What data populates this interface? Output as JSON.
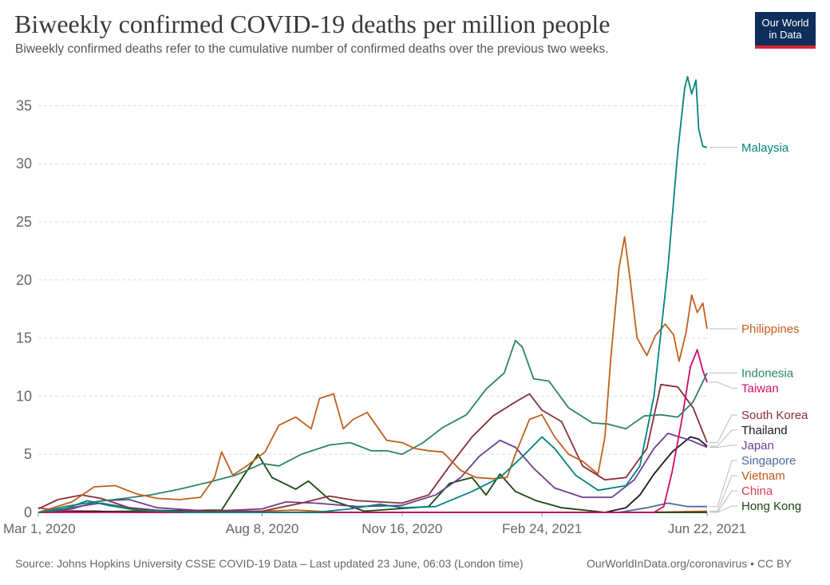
{
  "header": {
    "title": "Biweekly confirmed COVID-19 deaths per million people",
    "subtitle": "Biweekly confirmed deaths refer to the cumulative number of confirmed deaths over the previous two weeks.",
    "logo_line1": "Our World",
    "logo_line2": "in Data"
  },
  "footer": {
    "source": "Source: Johns Hopkins University CSSE COVID-19 Data – Last updated 23 June, 06:03 (London time)",
    "credit": "OurWorldInData.org/coronavirus • CC BY"
  },
  "colors": {
    "Malaysia": "#00847e",
    "Philippines": "#c15f1e",
    "Indonesia": "#2c8465",
    "Taiwan": "#cf0a66",
    "Japan": "#6d3e91",
    "Thailand": "#1a1a1a",
    "South Korea": "#883039",
    "Singapore": "#4c6a9c",
    "Vietnam": "#c05917",
    "China": "#d73c50",
    "Hong Kong": "#18470f",
    "grid": "#dddddd",
    "axis_text": "#666666"
  },
  "chart_data": {
    "type": "line",
    "title": "Biweekly confirmed COVID-19 deaths per million people",
    "xlabel": "",
    "ylabel": "",
    "x_domain": [
      "2020-03-01",
      "2021-06-22"
    ],
    "x_ticks": [
      {
        "date": "2020-03-01",
        "label": "Mar 1, 2020"
      },
      {
        "date": "2020-08-08",
        "label": "Aug 8, 2020"
      },
      {
        "date": "2020-11-16",
        "label": "Nov 16, 2020"
      },
      {
        "date": "2021-02-24",
        "label": "Feb 24, 2021"
      },
      {
        "date": "2021-06-22",
        "label": "Jun 22, 2021"
      }
    ],
    "ylim": [
      0,
      37.5
    ],
    "y_ticks": [
      0,
      5,
      10,
      15,
      20,
      25,
      30,
      35
    ],
    "grid": true,
    "legend": "right (labels at line ends)",
    "series": [
      {
        "name": "Malaysia",
        "color": "#00847e",
        "points": [
          [
            "2020-03-01",
            0.0
          ],
          [
            "2020-03-20",
            0.3
          ],
          [
            "2020-04-05",
            1.0
          ],
          [
            "2020-04-20",
            0.6
          ],
          [
            "2020-05-10",
            0.2
          ],
          [
            "2020-06-15",
            0.0
          ],
          [
            "2020-08-08",
            0.0
          ],
          [
            "2020-09-15",
            0.0
          ],
          [
            "2020-10-10",
            0.3
          ],
          [
            "2020-10-31",
            0.7
          ],
          [
            "2020-11-16",
            0.4
          ],
          [
            "2020-12-10",
            0.5
          ],
          [
            "2021-01-05",
            1.8
          ],
          [
            "2021-01-25",
            3.0
          ],
          [
            "2021-02-10",
            4.8
          ],
          [
            "2021-02-24",
            6.5
          ],
          [
            "2021-03-05",
            5.5
          ],
          [
            "2021-03-20",
            3.2
          ],
          [
            "2021-04-05",
            1.9
          ],
          [
            "2021-04-25",
            2.3
          ],
          [
            "2021-05-05",
            4.0
          ],
          [
            "2021-05-15",
            10.0
          ],
          [
            "2021-05-25",
            21.0
          ],
          [
            "2021-06-01",
            31.0
          ],
          [
            "2021-06-06",
            36.5
          ],
          [
            "2021-06-08",
            37.5
          ],
          [
            "2021-06-11",
            36.0
          ],
          [
            "2021-06-14",
            37.2
          ],
          [
            "2021-06-16",
            33.0
          ],
          [
            "2021-06-19",
            31.5
          ],
          [
            "2021-06-22",
            31.4
          ]
        ]
      },
      {
        "name": "Philippines",
        "color": "#c15f1e",
        "points": [
          [
            "2020-03-01",
            0.0
          ],
          [
            "2020-03-25",
            0.9
          ],
          [
            "2020-04-10",
            2.2
          ],
          [
            "2020-04-25",
            2.3
          ],
          [
            "2020-05-10",
            1.6
          ],
          [
            "2020-05-25",
            1.2
          ],
          [
            "2020-06-10",
            1.1
          ],
          [
            "2020-06-25",
            1.3
          ],
          [
            "2020-07-05",
            3.0
          ],
          [
            "2020-07-10",
            5.2
          ],
          [
            "2020-07-18",
            3.2
          ],
          [
            "2020-07-28",
            4.0
          ],
          [
            "2020-08-10",
            5.2
          ],
          [
            "2020-08-20",
            7.5
          ],
          [
            "2020-09-01",
            8.2
          ],
          [
            "2020-09-12",
            7.2
          ],
          [
            "2020-09-18",
            9.8
          ],
          [
            "2020-09-28",
            10.2
          ],
          [
            "2020-10-05",
            7.2
          ],
          [
            "2020-10-12",
            8.0
          ],
          [
            "2020-10-22",
            8.6
          ],
          [
            "2020-11-05",
            6.2
          ],
          [
            "2020-11-16",
            6.0
          ],
          [
            "2020-11-25",
            5.5
          ],
          [
            "2020-12-05",
            5.3
          ],
          [
            "2020-12-15",
            5.2
          ],
          [
            "2020-12-28",
            3.6
          ],
          [
            "2021-01-08",
            3.0
          ],
          [
            "2021-01-20",
            2.9
          ],
          [
            "2021-01-30",
            3.0
          ],
          [
            "2021-02-05",
            5.0
          ],
          [
            "2021-02-15",
            8.0
          ],
          [
            "2021-02-24",
            8.4
          ],
          [
            "2021-03-05",
            6.5
          ],
          [
            "2021-03-15",
            5.0
          ],
          [
            "2021-03-25",
            4.4
          ],
          [
            "2021-04-05",
            3.3
          ],
          [
            "2021-04-10",
            6.5
          ],
          [
            "2021-04-14",
            13.0
          ],
          [
            "2021-04-20",
            21.0
          ],
          [
            "2021-04-24",
            23.7
          ],
          [
            "2021-04-28",
            20.0
          ],
          [
            "2021-05-03",
            15.0
          ],
          [
            "2021-05-10",
            13.5
          ],
          [
            "2021-05-16",
            15.2
          ],
          [
            "2021-05-23",
            16.2
          ],
          [
            "2021-05-29",
            15.3
          ],
          [
            "2021-06-02",
            13.0
          ],
          [
            "2021-06-07",
            15.5
          ],
          [
            "2021-06-11",
            18.7
          ],
          [
            "2021-06-15",
            17.2
          ],
          [
            "2021-06-19",
            18.0
          ],
          [
            "2021-06-22",
            15.8
          ]
        ]
      },
      {
        "name": "Indonesia",
        "color": "#2c8465",
        "points": [
          [
            "2020-03-01",
            0.0
          ],
          [
            "2020-03-20",
            0.5
          ],
          [
            "2020-04-10",
            0.9
          ],
          [
            "2020-05-01",
            1.2
          ],
          [
            "2020-05-20",
            1.5
          ],
          [
            "2020-06-10",
            2.0
          ],
          [
            "2020-07-01",
            2.6
          ],
          [
            "2020-07-20",
            3.2
          ],
          [
            "2020-08-08",
            4.2
          ],
          [
            "2020-08-20",
            4.0
          ],
          [
            "2020-09-05",
            5.0
          ],
          [
            "2020-09-25",
            5.8
          ],
          [
            "2020-10-10",
            6.0
          ],
          [
            "2020-10-25",
            5.3
          ],
          [
            "2020-11-05",
            5.3
          ],
          [
            "2020-11-16",
            5.0
          ],
          [
            "2020-12-01",
            6.0
          ],
          [
            "2020-12-15",
            7.3
          ],
          [
            "2021-01-01",
            8.4
          ],
          [
            "2021-01-15",
            10.6
          ],
          [
            "2021-01-28",
            12.0
          ],
          [
            "2021-02-05",
            14.8
          ],
          [
            "2021-02-10",
            14.2
          ],
          [
            "2021-02-18",
            11.5
          ],
          [
            "2021-03-01",
            11.3
          ],
          [
            "2021-03-15",
            9.0
          ],
          [
            "2021-04-01",
            7.7
          ],
          [
            "2021-04-12",
            7.6
          ],
          [
            "2021-04-25",
            7.2
          ],
          [
            "2021-05-08",
            8.3
          ],
          [
            "2021-05-20",
            8.4
          ],
          [
            "2021-06-01",
            8.2
          ],
          [
            "2021-06-12",
            9.5
          ],
          [
            "2021-06-22",
            12.0
          ]
        ]
      },
      {
        "name": "Taiwan",
        "color": "#cf0a66",
        "points": [
          [
            "2020-03-01",
            0.0
          ],
          [
            "2021-05-15",
            0.0
          ],
          [
            "2021-05-22",
            0.5
          ],
          [
            "2021-05-28",
            3.5
          ],
          [
            "2021-06-04",
            8.0
          ],
          [
            "2021-06-10",
            12.5
          ],
          [
            "2021-06-15",
            14.0
          ],
          [
            "2021-06-19",
            12.2
          ],
          [
            "2021-06-22",
            11.2
          ]
        ]
      },
      {
        "name": "Japan",
        "color": "#6d3e91",
        "points": [
          [
            "2020-03-01",
            0.0
          ],
          [
            "2020-03-25",
            0.3
          ],
          [
            "2020-04-15",
            1.0
          ],
          [
            "2020-05-05",
            1.1
          ],
          [
            "2020-05-25",
            0.4
          ],
          [
            "2020-07-01",
            0.1
          ],
          [
            "2020-08-08",
            0.3
          ],
          [
            "2020-08-25",
            0.9
          ],
          [
            "2020-09-15",
            0.8
          ],
          [
            "2020-10-15",
            0.5
          ],
          [
            "2020-11-16",
            0.6
          ],
          [
            "2020-12-10",
            1.5
          ],
          [
            "2020-12-28",
            3.0
          ],
          [
            "2021-01-10",
            4.8
          ],
          [
            "2021-01-25",
            6.2
          ],
          [
            "2021-02-05",
            5.6
          ],
          [
            "2021-02-18",
            3.8
          ],
          [
            "2021-03-05",
            2.1
          ],
          [
            "2021-03-25",
            1.3
          ],
          [
            "2021-04-15",
            1.3
          ],
          [
            "2021-05-01",
            2.8
          ],
          [
            "2021-05-15",
            5.5
          ],
          [
            "2021-05-25",
            6.8
          ],
          [
            "2021-06-10",
            6.2
          ],
          [
            "2021-06-22",
            5.6
          ]
        ]
      },
      {
        "name": "Thailand",
        "color": "#1a1a1a",
        "points": [
          [
            "2020-03-01",
            0.0
          ],
          [
            "2020-04-10",
            0.1
          ],
          [
            "2020-05-10",
            0.0
          ],
          [
            "2021-04-10",
            0.0
          ],
          [
            "2021-04-25",
            0.4
          ],
          [
            "2021-05-05",
            1.5
          ],
          [
            "2021-05-15",
            3.3
          ],
          [
            "2021-05-28",
            5.2
          ],
          [
            "2021-06-10",
            6.5
          ],
          [
            "2021-06-16",
            6.3
          ],
          [
            "2021-06-22",
            5.7
          ]
        ]
      },
      {
        "name": "South Korea",
        "color": "#883039",
        "points": [
          [
            "2020-03-01",
            0.3
          ],
          [
            "2020-03-15",
            1.1
          ],
          [
            "2020-04-01",
            1.5
          ],
          [
            "2020-04-15",
            1.2
          ],
          [
            "2020-05-05",
            0.4
          ],
          [
            "2020-06-01",
            0.1
          ],
          [
            "2020-08-08",
            0.1
          ],
          [
            "2020-09-05",
            0.8
          ],
          [
            "2020-09-25",
            1.4
          ],
          [
            "2020-10-15",
            1.0
          ],
          [
            "2020-11-16",
            0.8
          ],
          [
            "2020-12-05",
            1.5
          ],
          [
            "2020-12-20",
            4.0
          ],
          [
            "2021-01-05",
            6.5
          ],
          [
            "2021-01-20",
            8.3
          ],
          [
            "2021-02-05",
            9.5
          ],
          [
            "2021-02-15",
            10.2
          ],
          [
            "2021-02-24",
            8.8
          ],
          [
            "2021-03-10",
            7.8
          ],
          [
            "2021-03-25",
            4.0
          ],
          [
            "2021-04-10",
            2.8
          ],
          [
            "2021-04-25",
            3.0
          ],
          [
            "2021-05-10",
            5.5
          ],
          [
            "2021-05-20",
            11.0
          ],
          [
            "2021-06-01",
            10.8
          ],
          [
            "2021-06-12",
            9.0
          ],
          [
            "2021-06-22",
            6.0
          ]
        ]
      },
      {
        "name": "Singapore",
        "color": "#4c6a9c",
        "points": [
          [
            "2020-03-01",
            0.0
          ],
          [
            "2020-04-15",
            0.8
          ],
          [
            "2020-05-15",
            0.2
          ],
          [
            "2020-08-08",
            0.0
          ],
          [
            "2021-04-20",
            0.0
          ],
          [
            "2021-05-10",
            0.4
          ],
          [
            "2021-05-25",
            0.8
          ],
          [
            "2021-06-08",
            0.5
          ],
          [
            "2021-06-22",
            0.5
          ]
        ]
      },
      {
        "name": "Vietnam",
        "color": "#c05917",
        "points": [
          [
            "2020-03-01",
            0.0
          ],
          [
            "2020-08-08",
            0.1
          ],
          [
            "2020-09-01",
            0.2
          ],
          [
            "2020-10-01",
            0.0
          ],
          [
            "2021-05-10",
            0.0
          ],
          [
            "2021-06-22",
            0.1
          ]
        ]
      },
      {
        "name": "China",
        "color": "#d73c50",
        "points": [
          [
            "2020-03-01",
            0.4
          ],
          [
            "2020-03-15",
            0.15
          ],
          [
            "2020-04-10",
            0.1
          ],
          [
            "2020-05-01",
            0.0
          ],
          [
            "2021-06-22",
            0.0
          ]
        ]
      },
      {
        "name": "Hong Kong",
        "color": "#18470f",
        "points": [
          [
            "2020-03-01",
            0.0
          ],
          [
            "2020-07-10",
            0.2
          ],
          [
            "2020-07-25",
            3.0
          ],
          [
            "2020-08-05",
            5.0
          ],
          [
            "2020-08-15",
            3.0
          ],
          [
            "2020-09-01",
            2.0
          ],
          [
            "2020-09-10",
            2.7
          ],
          [
            "2020-09-25",
            1.1
          ],
          [
            "2020-10-20",
            0.1
          ],
          [
            "2020-12-05",
            0.5
          ],
          [
            "2020-12-20",
            2.5
          ],
          [
            "2021-01-05",
            3.0
          ],
          [
            "2021-01-15",
            1.5
          ],
          [
            "2021-01-25",
            3.3
          ],
          [
            "2021-02-05",
            1.8
          ],
          [
            "2021-02-20",
            1.0
          ],
          [
            "2021-03-10",
            0.4
          ],
          [
            "2021-04-10",
            0.0
          ],
          [
            "2021-06-22",
            0.0
          ]
        ]
      }
    ],
    "end_labels": [
      {
        "name": "Malaysia",
        "label": "Malaysia",
        "color": "#00847e"
      },
      {
        "name": "Philippines",
        "label": "Philippines",
        "color": "#c15f1e"
      },
      {
        "name": "Indonesia",
        "label": "Indonesia",
        "color": "#2c8465"
      },
      {
        "name": "Taiwan",
        "label": "Taiwan",
        "color": "#cf0a66"
      },
      {
        "name": "Japan",
        "label": "Japan",
        "color": "#6d3e91"
      },
      {
        "name": "Thailand",
        "label": "Thailand",
        "color": "#1a1a1a"
      },
      {
        "name": "South Korea",
        "label": "South Korea",
        "color": "#883039"
      },
      {
        "name": "Singapore",
        "label": "Singapore",
        "color": "#4c6a9c"
      },
      {
        "name": "Vietnam",
        "label": "Vietnam",
        "color": "#c05917"
      },
      {
        "name": "China",
        "label": "China",
        "color": "#d73c50"
      },
      {
        "name": "Hong Kong",
        "label": "Hong Kong",
        "color": "#18470f"
      }
    ]
  }
}
